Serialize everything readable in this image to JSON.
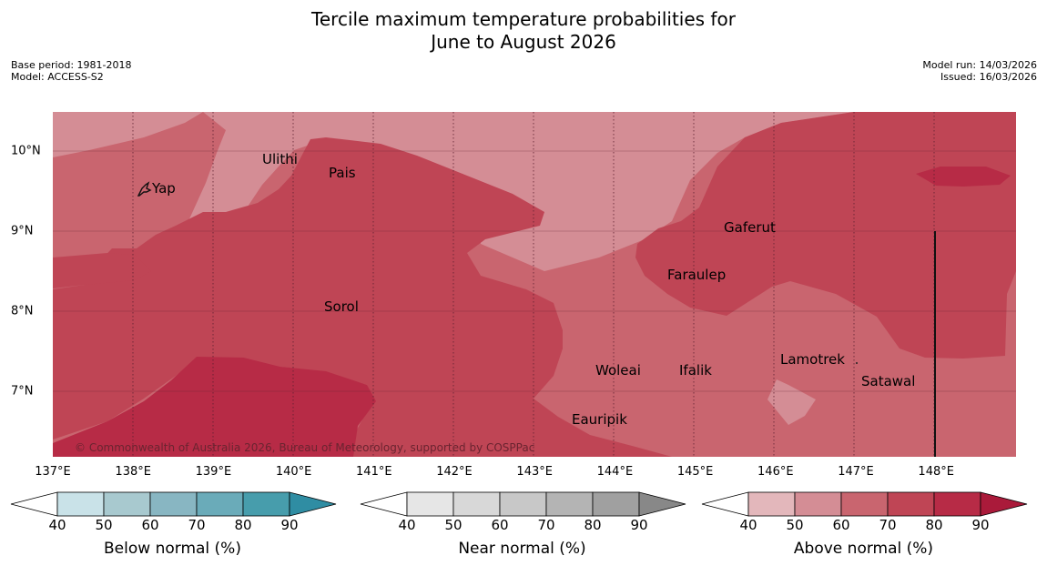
{
  "title_line1": "Tercile maximum temperature probabilities for",
  "title_line2": "June to August 2026",
  "meta_left": {
    "base_period": "Base period: 1981-2018",
    "model": "Model: ACCESS-S2"
  },
  "meta_right": {
    "model_run": "Model run: 14/03/2026",
    "issued": "Issued: 16/03/2026"
  },
  "map": {
    "longitude_labels": [
      "137°E",
      "138°E",
      "139°E",
      "140°E",
      "141°E",
      "142°E",
      "143°E",
      "144°E",
      "145°E",
      "146°E",
      "147°E",
      "148°E"
    ],
    "latitude_labels": [
      "10°N",
      "9°N",
      "8°N",
      "7°N"
    ],
    "places": [
      "Ulithi",
      "Pais",
      "Yap",
      "Gaferut",
      "Faraulep",
      "Sorol",
      "Lamotrek",
      "Woleai",
      "Ifalik",
      "Satawal",
      "Eauripik"
    ],
    "copyright": "© Commonwealth of Australia 2026, Bureau of Meteorology, supported by COSPPac",
    "fill_colors": {
      "c50": "#d48d95",
      "c60": "#c9656f",
      "c70": "#bf4555",
      "c80": "#b72b46"
    }
  },
  "colorbars": [
    {
      "title": "Below normal (%)",
      "ticks": [
        "40",
        "50",
        "60",
        "70",
        "80",
        "90"
      ],
      "colors": [
        "#ffffff",
        "#c9e2e8",
        "#a8c9cf",
        "#88b6c2",
        "#6aabb9",
        "#479dac",
        "#2f8da3"
      ]
    },
    {
      "title": "Near normal (%)",
      "ticks": [
        "40",
        "50",
        "60",
        "70",
        "80",
        "90"
      ],
      "colors": [
        "#ffffff",
        "#e6e6e6",
        "#d8d8d8",
        "#c8c8c8",
        "#b4b4b4",
        "#a0a0a0",
        "#888888"
      ]
    },
    {
      "title": "Above normal (%)",
      "ticks": [
        "40",
        "50",
        "60",
        "70",
        "80",
        "90"
      ],
      "colors": [
        "#ffffff",
        "#e3b7bb",
        "#d48d95",
        "#c9656f",
        "#bf4555",
        "#b72b46",
        "#aa1a3a"
      ]
    }
  ]
}
